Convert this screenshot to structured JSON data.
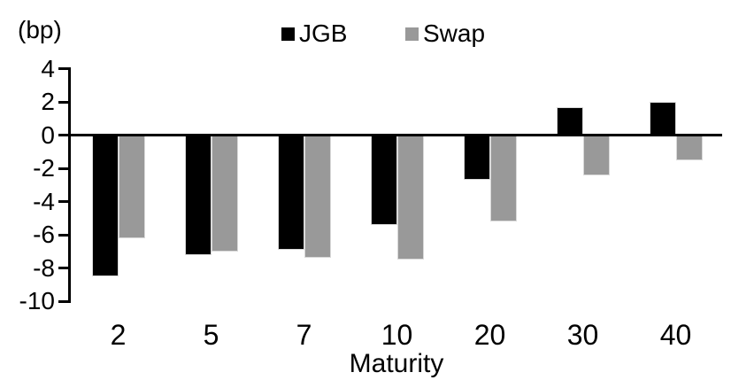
{
  "unit_label": "(bp)",
  "chart_data": {
    "type": "bar",
    "title": "",
    "unit_label": "(bp)",
    "xlabel": "Maturity",
    "categories": [
      "2",
      "5",
      "7",
      "10",
      "20",
      "30",
      "40"
    ],
    "series": [
      {
        "name": "JGB",
        "color": "#000000",
        "values": [
          -8.5,
          -7.2,
          -6.9,
          -5.4,
          -2.7,
          1.7,
          2.0
        ]
      },
      {
        "name": "Swap",
        "color": "#999999",
        "values": [
          -6.2,
          -7.0,
          -7.4,
          -7.5,
          -5.2,
          -2.4,
          -1.5
        ]
      }
    ],
    "y_ticks": [
      4,
      2,
      0,
      -2,
      -4,
      -6,
      -8,
      -10
    ],
    "ylim": [
      -10,
      4
    ],
    "legend_position": "top-center",
    "grid": false,
    "axis_color": "#000000",
    "bar_outline_color": "#d9d9d9"
  }
}
